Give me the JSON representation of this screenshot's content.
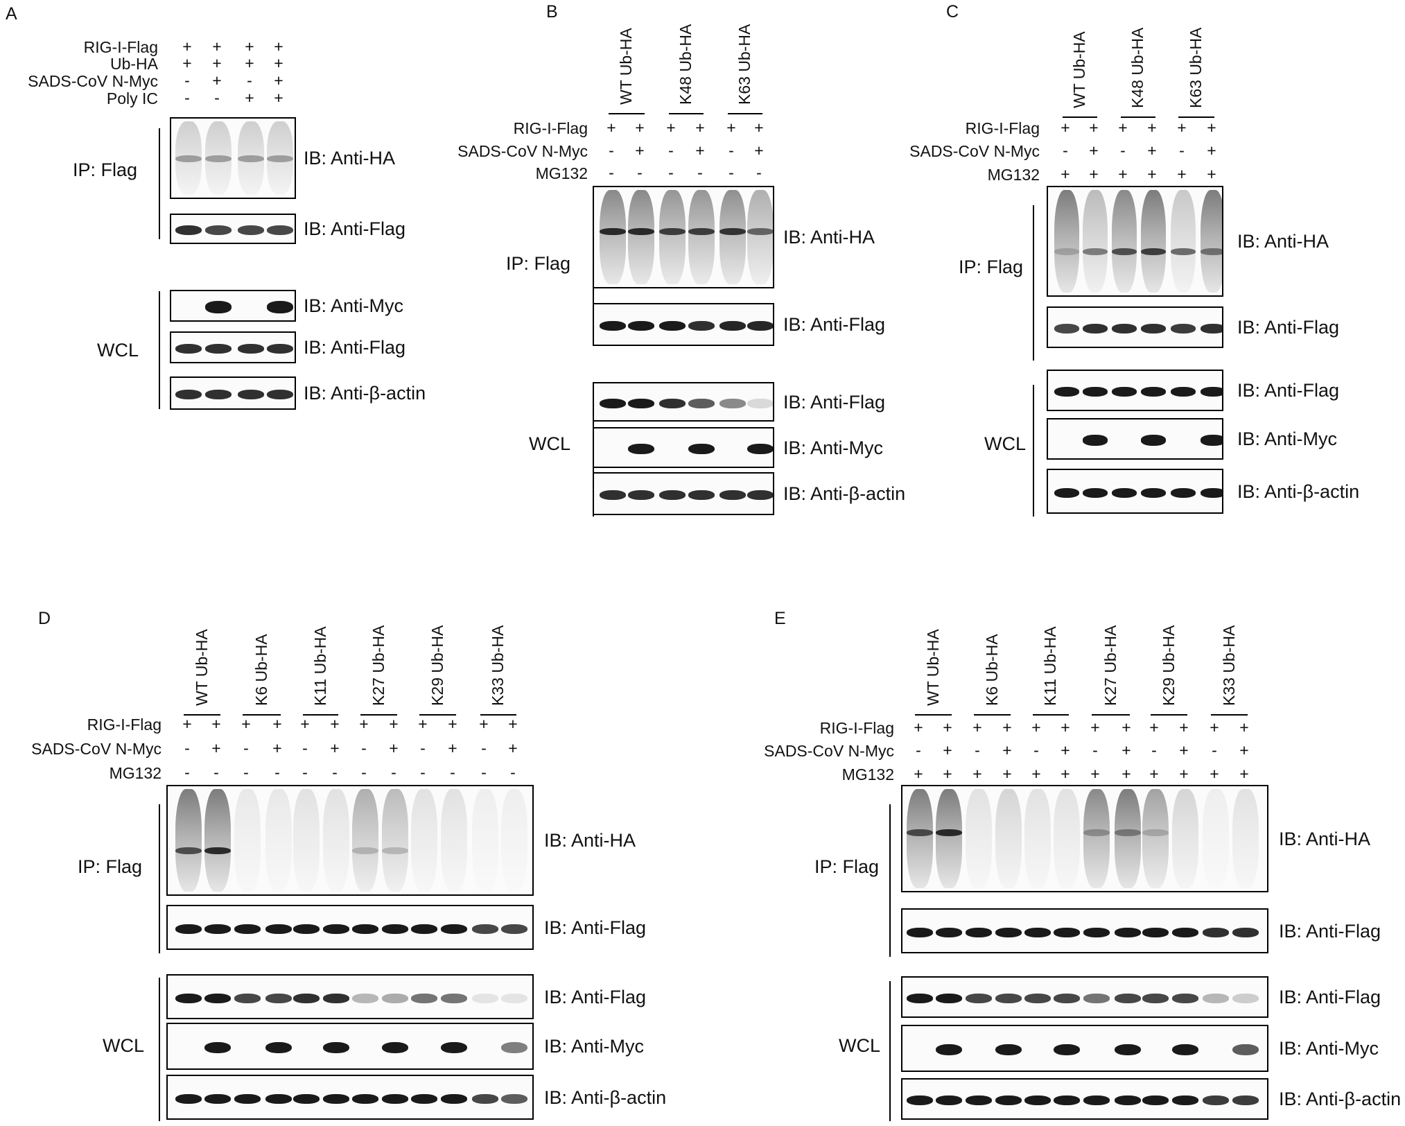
{
  "panels": {
    "A": {
      "letter": "A",
      "conditions": [
        {
          "label": "RIG-I-Flag",
          "signs": [
            "+",
            "+",
            "+",
            "+"
          ]
        },
        {
          "label": "Ub-HA",
          "signs": [
            "+",
            "+",
            "+",
            "+"
          ]
        },
        {
          "label": "SADS-CoV N-Myc",
          "signs": [
            "-",
            "+",
            "-",
            "+"
          ]
        },
        {
          "label": "Poly IC",
          "signs": [
            "-",
            "-",
            "+",
            "+"
          ]
        }
      ],
      "groups": {
        "ip": "IP: Flag",
        "wcl": "WCL"
      },
      "blots": [
        "IB: Anti-HA",
        "IB: Anti-Flag",
        "IB: Anti-Myc",
        "IB: Anti-Flag",
        "IB: Anti-β-actin"
      ]
    },
    "B": {
      "letter": "B",
      "lane_groups": [
        "WT Ub-HA",
        "K48 Ub-HA",
        "K63 Ub-HA"
      ],
      "conditions": [
        {
          "label": "RIG-I-Flag",
          "signs": [
            "+",
            "+",
            "+",
            "+",
            "+",
            "+"
          ]
        },
        {
          "label": "SADS-CoV N-Myc",
          "signs": [
            "-",
            "+",
            "-",
            "+",
            "-",
            "+"
          ]
        },
        {
          "label": "MG132",
          "signs": [
            "-",
            "-",
            "-",
            "-",
            "-",
            "-"
          ]
        }
      ],
      "groups": {
        "ip": "IP: Flag",
        "wcl": "WCL"
      },
      "blots": [
        "IB: Anti-HA",
        "IB: Anti-Flag",
        "IB: Anti-Flag",
        "IB: Anti-Myc",
        "IB: Anti-β-actin"
      ]
    },
    "C": {
      "letter": "C",
      "lane_groups": [
        "WT Ub-HA",
        "K48 Ub-HA",
        "K63 Ub-HA"
      ],
      "conditions": [
        {
          "label": "RIG-I-Flag",
          "signs": [
            "+",
            "+",
            "+",
            "+",
            "+",
            "+"
          ]
        },
        {
          "label": "SADS-CoV N-Myc",
          "signs": [
            "-",
            "+",
            "-",
            "+",
            "-",
            "+"
          ]
        },
        {
          "label": "MG132",
          "signs": [
            "+",
            "+",
            "+",
            "+",
            "+",
            "+"
          ]
        }
      ],
      "groups": {
        "ip": "IP: Flag",
        "wcl": "WCL"
      },
      "blots": [
        "IB: Anti-HA",
        "IB: Anti-Flag",
        "IB: Anti-Flag",
        "IB: Anti-Myc",
        "IB: Anti-β-actin"
      ]
    },
    "D": {
      "letter": "D",
      "lane_groups": [
        "WT Ub-HA",
        "K6 Ub-HA",
        "K11 Ub-HA",
        "K27 Ub-HA",
        "K29 Ub-HA",
        "K33 Ub-HA"
      ],
      "conditions": [
        {
          "label": "RIG-I-Flag",
          "signs": [
            "+",
            "+",
            "+",
            "+",
            "+",
            "+",
            "+",
            "+",
            "+",
            "+",
            "+",
            "+"
          ]
        },
        {
          "label": "SADS-CoV N-Myc",
          "signs": [
            "-",
            "+",
            "-",
            "+",
            "-",
            "+",
            "-",
            "+",
            "-",
            "+",
            "-",
            "+"
          ]
        },
        {
          "label": "MG132",
          "signs": [
            "-",
            "-",
            "-",
            "-",
            "-",
            "-",
            "-",
            "-",
            "-",
            "-",
            "-",
            "-"
          ]
        }
      ],
      "groups": {
        "ip": "IP: Flag",
        "wcl": "WCL"
      },
      "blots": [
        "IB: Anti-HA",
        "IB: Anti-Flag",
        "IB: Anti-Flag",
        "IB: Anti-Myc",
        "IB: Anti-β-actin"
      ]
    },
    "E": {
      "letter": "E",
      "lane_groups": [
        "WT Ub-HA",
        "K6 Ub-HA",
        "K11 Ub-HA",
        "K27 Ub-HA",
        "K29 Ub-HA",
        "K33 Ub-HA"
      ],
      "conditions": [
        {
          "label": "RIG-I-Flag",
          "signs": [
            "+",
            "+",
            "+",
            "+",
            "+",
            "+",
            "+",
            "+",
            "+",
            "+",
            "+",
            "+"
          ]
        },
        {
          "label": "SADS-CoV N-Myc",
          "signs": [
            "-",
            "+",
            "-",
            "+",
            "-",
            "+",
            "-",
            "+",
            "-",
            "+",
            "-",
            "+"
          ]
        },
        {
          "label": "MG132",
          "signs": [
            "+",
            "+",
            "+",
            "+",
            "+",
            "+",
            "+",
            "+",
            "+",
            "+",
            "+",
            "+"
          ]
        }
      ],
      "groups": {
        "ip": "IP: Flag",
        "wcl": "WCL"
      },
      "blots": [
        "IB: Anti-HA",
        "IB: Anti-Flag",
        "IB: Anti-Flag",
        "IB: Anti-Myc",
        "IB: Anti-β-actin"
      ]
    }
  }
}
